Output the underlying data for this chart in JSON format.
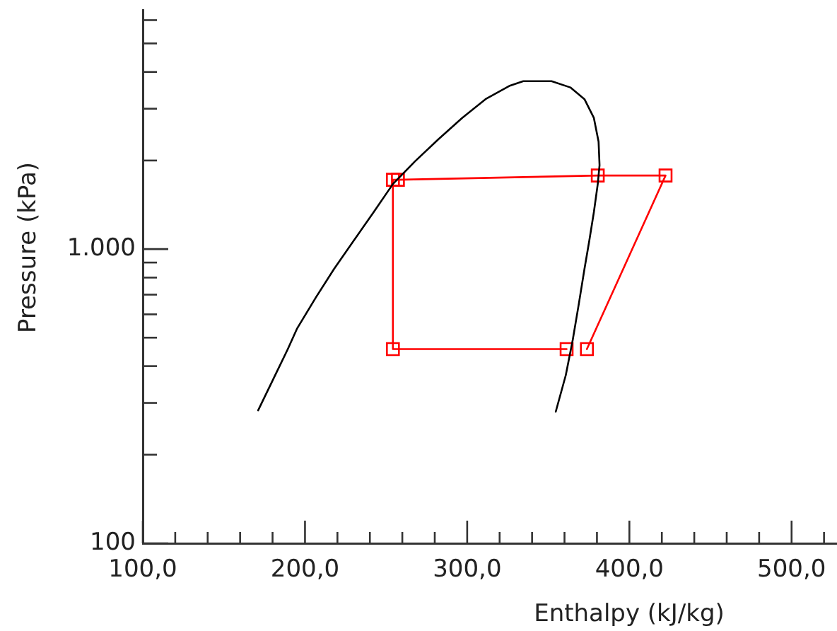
{
  "chart_data": {
    "type": "line",
    "xlabel": "Enthalpy (kJ/kg)",
    "ylabel": "Pressure (kPa)",
    "log": "y",
    "grid": false,
    "legend": false,
    "xlim": [
      100,
      528
    ],
    "xticks": [
      {
        "value": 100,
        "label": "100,0"
      },
      {
        "value": 120,
        "label": null
      },
      {
        "value": 140,
        "label": null
      },
      {
        "value": 160,
        "label": null
      },
      {
        "value": 180,
        "label": null
      },
      {
        "value": 200,
        "label": "200,0"
      },
      {
        "value": 220,
        "label": null
      },
      {
        "value": 240,
        "label": null
      },
      {
        "value": 260,
        "label": null
      },
      {
        "value": 280,
        "label": null
      },
      {
        "value": 300,
        "label": "300,0"
      },
      {
        "value": 320,
        "label": null
      },
      {
        "value": 340,
        "label": null
      },
      {
        "value": 360,
        "label": null
      },
      {
        "value": 380,
        "label": null
      },
      {
        "value": 400,
        "label": "400,0"
      },
      {
        "value": 420,
        "label": null
      },
      {
        "value": 440,
        "label": null
      },
      {
        "value": 460,
        "label": null
      },
      {
        "value": 480,
        "label": null
      },
      {
        "value": 500,
        "label": "500,0"
      },
      {
        "value": 520,
        "label": null
      }
    ],
    "ylim": [
      100,
      6500
    ],
    "yticks": [
      100,
      {
        "value": 200,
        "label": null
      },
      {
        "value": 300,
        "label": null
      },
      {
        "value": 400,
        "label": null
      },
      {
        "value": 500,
        "label": null
      },
      {
        "value": 600,
        "label": null
      },
      {
        "value": 700,
        "label": null
      },
      {
        "value": 800,
        "label": null
      },
      {
        "value": 900,
        "label": null
      },
      {
        "value": 1000,
        "label": "1.000"
      },
      {
        "value": 2000,
        "label": null
      },
      {
        "value": 3000,
        "label": null
      },
      {
        "value": 4000,
        "label": null
      },
      {
        "value": 5000,
        "label": null
      },
      {
        "value": 6000,
        "label": null
      }
    ],
    "series": [
      {
        "color": "#000000",
        "marker": "none",
        "x": [
          171.1,
          180.4,
          189.4,
          195.2,
          206.8,
          217.9,
          230.1,
          242.3,
          254.2,
          267.8,
          282.3,
          296.9,
          311.3,
          325.9,
          334.6,
          352.0,
          363.6,
          372.3,
          378.1,
          381.0,
          381.6,
          380.5,
          378.1,
          375.3,
          372.3,
          368.8,
          365.1,
          360.8,
          354.6
        ],
        "values": [
          283,
          361,
          457,
          538,
          686,
          856,
          1069,
          1334,
          1664,
          1987,
          2363,
          2791,
          3233,
          3584,
          3722,
          3722,
          3543,
          3233,
          2791,
          2319,
          1928,
          1664,
          1334,
          1069,
          856,
          650,
          492,
          373,
          280
        ]
      },
      {
        "color": "#ff0000",
        "marker": "square",
        "x": [
          373.8,
          422.3,
          380.5,
          257.3,
          254.2,
          254.2,
          361.3
        ],
        "values": [
          457,
          1778,
          1778,
          1720,
          1720,
          457,
          457
        ]
      }
    ]
  }
}
